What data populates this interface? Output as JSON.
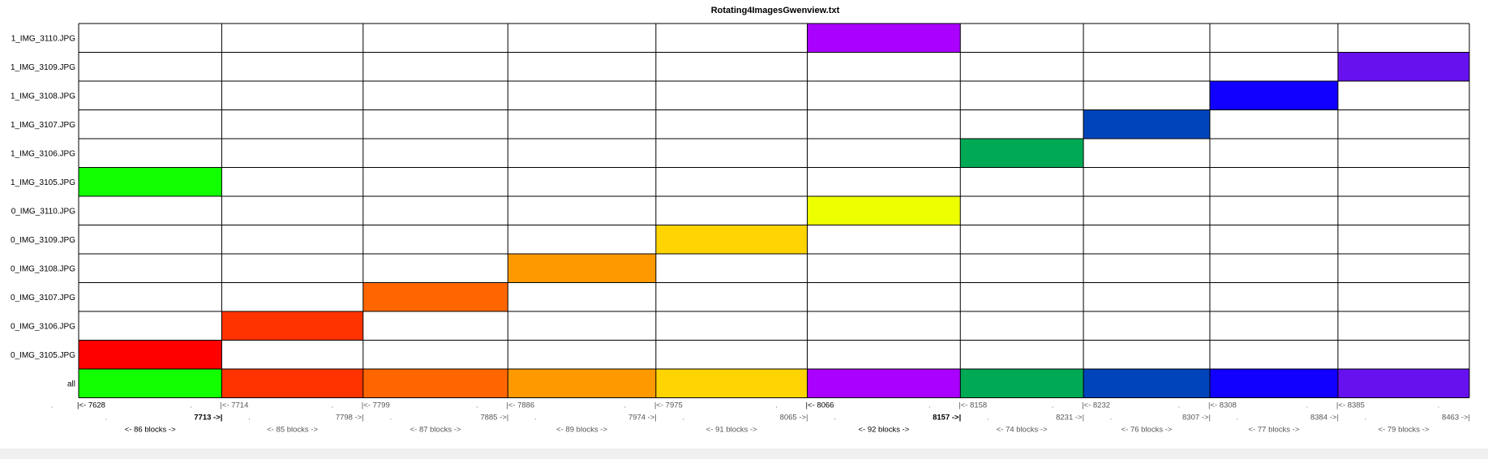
{
  "chart_data": {
    "type": "heatmap",
    "title": "Rotating4ImagesGwenview.txt",
    "rows": [
      "1_IMG_3110.JPG",
      "1_IMG_3109.JPG",
      "1_IMG_3108.JPG",
      "1_IMG_3107.JPG",
      "1_IMG_3106.JPG",
      "1_IMG_3105.JPG",
      "0_IMG_3110.JPG",
      "0_IMG_3109.JPG",
      "0_IMG_3108.JPG",
      "0_IMG_3107.JPG",
      "0_IMG_3106.JPG",
      "0_IMG_3105.JPG",
      "all"
    ],
    "dot_label": ".",
    "segments": [
      {
        "start": "|<- 7628",
        "end": "7713 ->|",
        "blocks": "<- 86 blocks ->",
        "row": "1_IMG_3105.JPG",
        "color": "#11ff00",
        "first_block": 7628,
        "last_block": 7713
      },
      {
        "start": "|<- 7714",
        "end": "7798 ->|",
        "blocks": "<- 85 blocks ->",
        "row": "0_IMG_3106.JPG",
        "color": "#ff3300",
        "first_block": 7714,
        "last_block": 7798
      },
      {
        "start": "|<- 7799",
        "end": "7885 ->|",
        "blocks": "<- 87 blocks ->",
        "row": "0_IMG_3107.JPG",
        "color": "#ff6600",
        "first_block": 7799,
        "last_block": 7885
      },
      {
        "start": "|<- 7886",
        "end": "7974 ->|",
        "blocks": "<- 89 blocks ->",
        "row": "0_IMG_3108.JPG",
        "color": "#ff9900",
        "first_block": 7886,
        "last_block": 7974
      },
      {
        "start": "|<- 7975",
        "end": "8065 ->|",
        "blocks": "<- 91 blocks ->",
        "row": "0_IMG_3109.JPG",
        "color": "#ffd400",
        "first_block": 7975,
        "last_block": 8065
      },
      {
        "start": "|<- 8066",
        "end": "8157 ->|",
        "blocks": "<- 92 blocks ->",
        "row": "1_IMG_3110.JPG",
        "color": "#aa00ff",
        "first_block": 8066,
        "last_block": 8157
      },
      {
        "start": "|<- 8158",
        "end": "8231 ->|",
        "blocks": "<- 74 blocks ->",
        "row": "1_IMG_3106.JPG",
        "color": "#00aa55",
        "first_block": 8158,
        "last_block": 8231
      },
      {
        "start": "|<- 8232",
        "end": "8307 ->|",
        "blocks": "<- 76 blocks ->",
        "row": "1_IMG_3107.JPG",
        "color": "#0044bb",
        "first_block": 8232,
        "last_block": 8307
      },
      {
        "start": "|<- 8308",
        "end": "8384 ->|",
        "blocks": "<- 77 blocks ->",
        "row": "1_IMG_3108.JPG",
        "color": "#1100ff",
        "first_block": 8308,
        "last_block": 8384
      },
      {
        "start": "|<- 8385",
        "end": "8463 ->|",
        "blocks": "<- 79 blocks ->",
        "row": "1_IMG_3109.JPG",
        "color": "#6611ee",
        "first_block": 8385,
        "last_block": 8463
      }
    ],
    "extra_cells": [
      {
        "row": "0_IMG_3110.JPG",
        "segment": 5,
        "color": "#eeff00"
      },
      {
        "row": "0_IMG_3105.JPG",
        "segment": 0,
        "color": "#ff0000"
      }
    ],
    "all_row_colors": [
      "#11ff00",
      "#ff3300",
      "#ff6600",
      "#ff9900",
      "#ffd400",
      "#aa00ff",
      "#00aa55",
      "#0044bb",
      "#1100ff",
      "#6611ee"
    ],
    "bold_segments": [
      0,
      5
    ],
    "grid": true,
    "legend": "none"
  }
}
